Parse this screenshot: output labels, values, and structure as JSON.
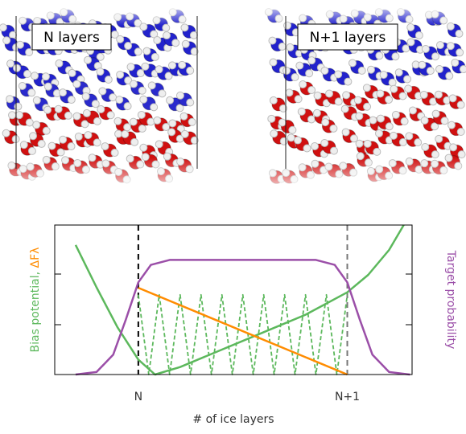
{
  "chart_data": {
    "type": "line",
    "annotations": [
      "N layers",
      "N+1 layers"
    ],
    "xlabel": "# of ice layers",
    "ylabel": "Bias potential,",
    "ylabel_symbol": "ΔFλ",
    "y2label": "Target probability",
    "xlim": [
      -0.4,
      1.31
    ],
    "xticks": [
      {
        "value": 0,
        "label": "N"
      },
      {
        "value": 1,
        "label": "N+1"
      }
    ],
    "ylim": [
      0,
      3
    ],
    "y2lim": [
      0,
      3
    ],
    "series": [
      {
        "color": "#5cb85c",
        "style": "solid",
        "x": [
          -0.3,
          -0.2,
          -0.1,
          0,
          0.08,
          0.2,
          0.4,
          0.6,
          0.8,
          1.0,
          1.1,
          1.2,
          1.27
        ],
        "values": [
          2.6,
          1.75,
          0.95,
          0.3,
          0,
          0.15,
          0.5,
          0.85,
          1.2,
          1.65,
          2.0,
          2.5,
          3.0
        ]
      },
      {
        "color": "#5cb85c",
        "style": "dashed",
        "x": [
          0,
          0.05,
          0.1,
          0.15,
          0.2,
          0.25,
          0.3,
          0.35,
          0.4,
          0.45,
          0.5,
          0.55,
          0.6,
          0.65,
          0.7,
          0.75,
          0.8,
          0.85,
          0.9,
          0.95,
          1.0
        ],
        "values": [
          1.6,
          0,
          1.6,
          0,
          1.6,
          0,
          1.6,
          0,
          1.6,
          0,
          1.6,
          0,
          1.6,
          0,
          1.6,
          0,
          1.6,
          0,
          1.6,
          0,
          1.6
        ]
      },
      {
        "color": "#ff8c00",
        "style": "solid",
        "x": [
          0,
          1
        ],
        "values": [
          1.74,
          0
        ]
      },
      {
        "color": "#9b4fa8",
        "style": "solid",
        "axis": "y2",
        "x": [
          -0.3,
          -0.2,
          -0.12,
          -0.06,
          0,
          0.06,
          0.15,
          0.85,
          0.94,
          1.0,
          1.06,
          1.12,
          1.2,
          1.3
        ],
        "values": [
          0,
          0.05,
          0.4,
          1.1,
          1.85,
          2.2,
          2.3,
          2.3,
          2.2,
          1.85,
          1.1,
          0.4,
          0.05,
          0
        ]
      }
    ]
  }
}
